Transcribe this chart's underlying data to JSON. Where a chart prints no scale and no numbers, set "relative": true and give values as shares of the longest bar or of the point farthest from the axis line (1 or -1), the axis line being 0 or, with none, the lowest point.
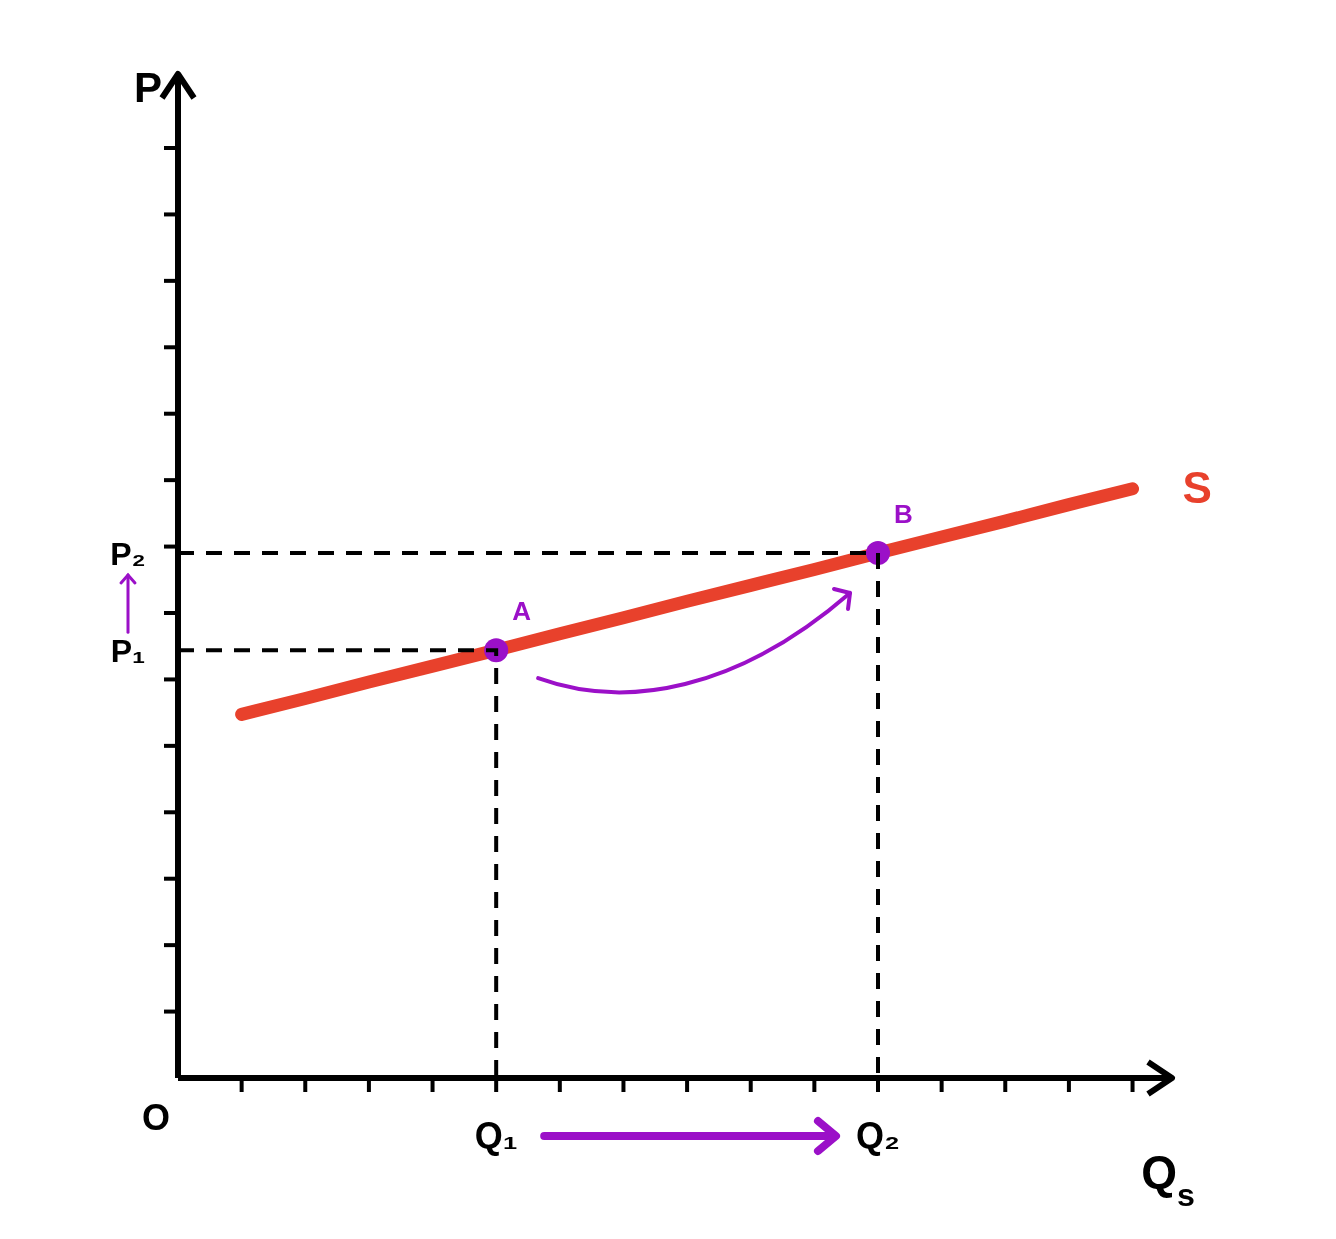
{
  "chart_data": {
    "type": "line",
    "relative": true,
    "xlabel": "Q$_{s}$",
    "categories": [
      null,
      null,
      null,
      null,
      "Q₁",
      null,
      null,
      null,
      null,
      null,
      "Q₂",
      null,
      null,
      null,
      null
    ],
    "series": [
      {
        "name": "S",
        "color": "#e8412c",
        "line_style": "solid",
        "values": [
          0.617,
          0.644,
          0.672,
          0.699,
          0.726,
          0.754,
          0.781,
          0.809,
          0.836,
          0.863,
          0.891,
          0.918,
          0.945,
          0.973,
          1
        ]
      },
      {
        "type": "scatter",
        "color": "#9b10c8",
        "marker": "circle",
        "x": [
          "Q₁",
          "Q₂"
        ],
        "values": [
          0.726,
          0.891
        ]
      }
    ],
    "annotations": [
      "O",
      {
        "text": "A",
        "x": "Q₁",
        "y": 0.726
      },
      {
        "text": "B",
        "x": "Q₂",
        "y": 0.891
      },
      "P₁",
      "P₂",
      "P"
    ]
  }
}
